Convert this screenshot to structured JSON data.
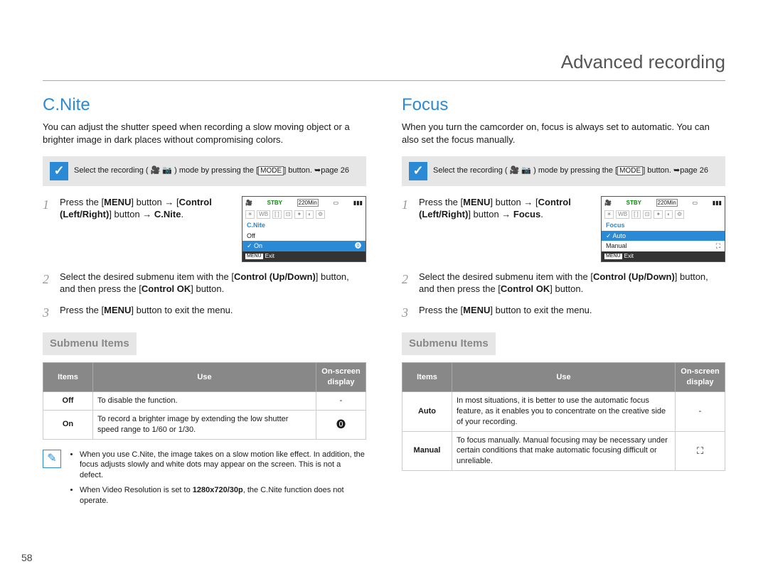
{
  "header": {
    "title": "Advanced recording"
  },
  "page_number": "58",
  "columns": [
    {
      "title": "C.Nite",
      "intro": "You can adjust the shutter speed when recording a slow moving object or a brighter image in dark places without compromising colors.",
      "mode_box": {
        "pre": "Select the recording (",
        "post": ") mode by pressing the [",
        "key": "MODE",
        "tail": "] button. ➥page 26"
      },
      "steps": [
        {
          "n": "1",
          "html": "Press the [<b>MENU</b>] button → [<b>Control (Left/Right)</b>] button → <b>C.Nite</b>."
        },
        {
          "n": "2",
          "html": "Select the desired submenu item with the [<b>Control (Up/Down)</b>] button, and then press the [<b>Control OK</b>] button."
        },
        {
          "n": "3",
          "html": "Press the [<b>MENU</b>] button to exit the menu."
        }
      ],
      "screen": {
        "stby": "STBY",
        "time": "220Min",
        "menu_title": "C.Nite",
        "items": [
          {
            "label": "Off",
            "selected": false
          },
          {
            "label": "On",
            "selected": true,
            "icon": "🄌"
          }
        ],
        "footer_tag": "MENU",
        "footer_label": "Exit"
      },
      "submenu_header": "Submenu Items",
      "table": {
        "headers": [
          "Items",
          "Use",
          "On-screen display"
        ],
        "col_widths": [
          "70px",
          "auto",
          "70px"
        ],
        "rows": [
          {
            "item": "Off",
            "use": "To disable the function.",
            "display": "-"
          },
          {
            "item": "On",
            "use": "To record a brighter image by extending the low shutter speed range to 1/60 or 1/30.",
            "display": "🄌"
          }
        ]
      },
      "notes": [
        "When you use C.Nite, the image takes on a slow motion like effect. In addition, the focus adjusts slowly and white dots may appear on the screen. This is not a defect.",
        "When Video Resolution is set to <b>1280x720/30p</b>, the C.Nite function does not operate."
      ]
    },
    {
      "title": "Focus",
      "intro": "When you turn the camcorder on, focus is always set to automatic. You can also set the focus manually.",
      "mode_box": {
        "pre": "Select the recording (",
        "post": ") mode by pressing the [",
        "key": "MODE",
        "tail": "] button. ➥page 26"
      },
      "steps": [
        {
          "n": "1",
          "html": "Press the [<b>MENU</b>] button → [<b>Control (Left/Right)</b>] button → <b>Focus</b>."
        },
        {
          "n": "2",
          "html": "Select the desired submenu item with the [<b>Control (Up/Down)</b>] button, and then press the [<b>Control OK</b>] button."
        },
        {
          "n": "3",
          "html": "Press the [<b>MENU</b>] button to exit the menu."
        }
      ],
      "screen": {
        "stby": "STBY",
        "time": "220Min",
        "menu_title": "Focus",
        "items": [
          {
            "label": "Auto",
            "selected": true
          },
          {
            "label": "Manual",
            "selected": false,
            "icon": "⛶"
          }
        ],
        "footer_tag": "MENU",
        "footer_label": "Exit"
      },
      "submenu_header": "Submenu Items",
      "table": {
        "headers": [
          "Items",
          "Use",
          "On-screen display"
        ],
        "col_widths": [
          "70px",
          "auto",
          "70px"
        ],
        "rows": [
          {
            "item": "Auto",
            "use": "In most situations, it is better to use the automatic focus feature, as it enables you to concentrate on the creative side of your recording.",
            "display": "-"
          },
          {
            "item": "Manual",
            "use": "To focus manually. Manual focusing may be necessary under certain conditions that make automatic focusing difficult or unreliable.",
            "display": "⛶"
          }
        ]
      },
      "notes": []
    }
  ]
}
